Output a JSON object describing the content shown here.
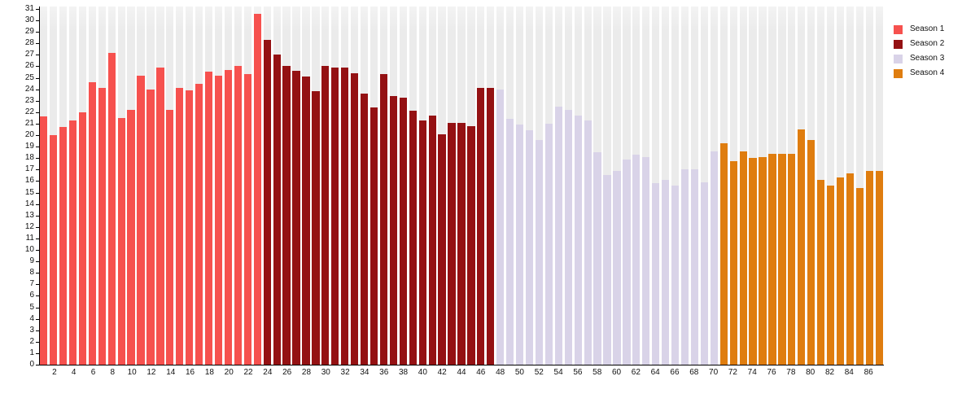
{
  "chart_data": {
    "type": "bar",
    "title": "",
    "xlabel": "",
    "ylabel": "",
    "ylim": [
      0,
      31
    ],
    "grid": "off",
    "background_stripe_color": "#ebebeb",
    "axis_color": "#000000",
    "x_start": 1,
    "x_end": 87,
    "y_tick_labels": [
      0,
      1,
      2,
      3,
      4,
      5,
      6,
      7,
      8,
      9,
      10,
      11,
      12,
      13,
      14,
      15,
      16,
      17,
      18,
      19,
      20,
      21,
      22,
      23,
      24,
      25,
      26,
      27,
      28,
      29,
      30,
      31
    ],
    "x_tick_labels": [
      2,
      4,
      6,
      8,
      10,
      12,
      14,
      16,
      18,
      20,
      22,
      24,
      26,
      28,
      30,
      32,
      34,
      36,
      38,
      40,
      42,
      44,
      46,
      48,
      50,
      52,
      54,
      56,
      58,
      60,
      62,
      64,
      66,
      68,
      70,
      72,
      74,
      76,
      78,
      80,
      82,
      84,
      86
    ],
    "series": [
      {
        "name": "Season 1",
        "color": "#f6514e",
        "first_episode": 1,
        "values": [
          21.6,
          20.0,
          20.7,
          21.3,
          22.0,
          24.6,
          24.1,
          27.2,
          21.5,
          22.2,
          25.2,
          24.0,
          25.9,
          22.2,
          24.1,
          23.9,
          24.5,
          25.5,
          25.2,
          25.7,
          26.0,
          25.3,
          30.6
        ]
      },
      {
        "name": "Season 2",
        "color": "#941113",
        "first_episode": 24,
        "values": [
          28.3,
          27.0,
          26.0,
          25.6,
          25.1,
          23.8,
          26.0,
          25.9,
          25.9,
          25.4,
          23.6,
          22.4,
          25.3,
          23.4,
          23.3,
          22.1,
          21.3,
          21.7,
          20.1,
          21.1,
          21.1,
          20.8,
          24.1,
          24.1
        ]
      },
      {
        "name": "Season 3",
        "color": "#d9d3e8",
        "first_episode": 48,
        "values": [
          24.0,
          21.4,
          20.9,
          20.4,
          19.6,
          21.0,
          22.5,
          22.2,
          21.7,
          21.3,
          18.5,
          16.5,
          16.9,
          17.9,
          18.3,
          18.1,
          15.8,
          16.1,
          15.6,
          17.0,
          17.0,
          15.9,
          18.6
        ]
      },
      {
        "name": "Season 4",
        "color": "#df7d0f",
        "first_episode": 71,
        "values": [
          19.3,
          17.7,
          18.6,
          18.0,
          18.1,
          18.4,
          18.4,
          18.4,
          20.5,
          19.6,
          16.1,
          15.6,
          16.3,
          16.7,
          15.4,
          16.9,
          16.9
        ]
      }
    ]
  },
  "legend": {
    "position": "top-right",
    "items": [
      {
        "label": "Season 1",
        "color": "#f6514e"
      },
      {
        "label": "Season 2",
        "color": "#941113"
      },
      {
        "label": "Season 3",
        "color": "#d9d3e8"
      },
      {
        "label": "Season 4",
        "color": "#df7d0f"
      }
    ]
  }
}
